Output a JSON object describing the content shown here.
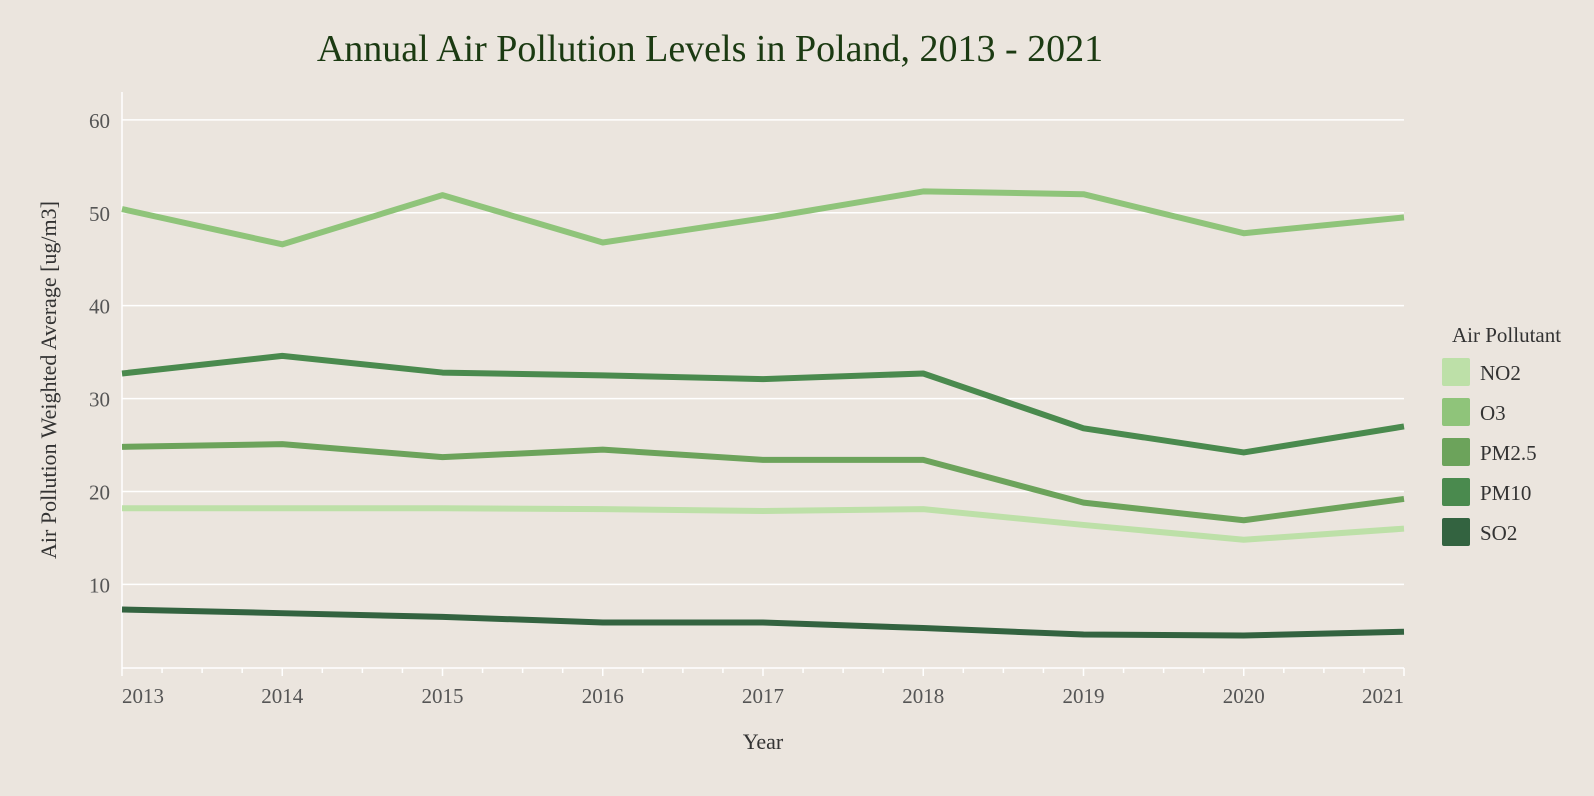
{
  "chart_data": {
    "type": "line",
    "title": "Annual Air Pollution Levels in Poland, 2013 - 2021",
    "xlabel": "Year",
    "ylabel": "Air Pollution Weighted Average [ug/m3]",
    "x": [
      2013,
      2014,
      2015,
      2016,
      2017,
      2018,
      2019,
      2020,
      2021
    ],
    "x_tick_labels": [
      "2013",
      "2014",
      "2015",
      "2016",
      "2017",
      "2018",
      "2019",
      "2020",
      "2021"
    ],
    "xlim": [
      2013,
      2021
    ],
    "ylim": [
      1,
      63
    ],
    "y_ticks": [
      10,
      20,
      30,
      40,
      50,
      60
    ],
    "y_tick_labels": [
      "10",
      "20",
      "30",
      "40",
      "50",
      "60"
    ],
    "grid": true,
    "legend_title": "Air Pollutant",
    "legend_position": "right",
    "series": [
      {
        "name": "NO2",
        "color": "#bde0a8",
        "values": [
          18.2,
          18.2,
          18.2,
          18.1,
          17.9,
          18.1,
          16.4,
          14.8,
          16.0
        ]
      },
      {
        "name": "O3",
        "color": "#8fc47a",
        "values": [
          50.4,
          46.6,
          51.9,
          46.8,
          49.4,
          52.3,
          52.0,
          47.8,
          49.5
        ]
      },
      {
        "name": "PM2.5",
        "color": "#6ca35b",
        "values": [
          24.8,
          25.1,
          23.7,
          24.5,
          23.4,
          23.4,
          18.8,
          16.9,
          19.2
        ]
      },
      {
        "name": "PM10",
        "color": "#4a8a4e",
        "values": [
          32.7,
          34.6,
          32.8,
          32.5,
          32.1,
          32.7,
          26.8,
          24.2,
          27.0
        ]
      },
      {
        "name": "SO2",
        "color": "#336340",
        "values": [
          7.3,
          6.9,
          6.5,
          5.9,
          5.9,
          5.3,
          4.6,
          4.5,
          4.9
        ]
      }
    ]
  }
}
